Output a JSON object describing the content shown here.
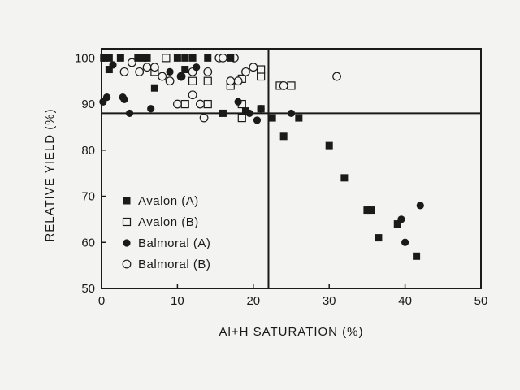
{
  "chart_data": {
    "type": "scatter",
    "title": "",
    "xlabel": "Al+H SATURATION (%)",
    "ylabel": "RELATIVE YIELD (%)",
    "xlim": [
      0,
      50
    ],
    "ylim": [
      50,
      102
    ],
    "xticks": [
      0,
      10,
      20,
      30,
      40,
      50
    ],
    "yticks": [
      50,
      60,
      70,
      80,
      90,
      100
    ],
    "grid": false,
    "legend_position": "lower-left",
    "reference_lines": {
      "x": 22,
      "y": 88
    },
    "series": [
      {
        "name": "Avalon (A)",
        "marker": "filled-square",
        "color": "#1a1a1a",
        "points": [
          [
            0.3,
            100
          ],
          [
            1.0,
            100
          ],
          [
            2.5,
            100
          ],
          [
            4.8,
            100
          ],
          [
            5.5,
            100
          ],
          [
            6.0,
            100
          ],
          [
            10.0,
            100
          ],
          [
            11.0,
            100
          ],
          [
            12.0,
            100
          ],
          [
            14.0,
            100
          ],
          [
            17.0,
            100
          ],
          [
            1.0,
            97.5
          ],
          [
            11.0,
            97.5
          ],
          [
            7.0,
            93.5
          ],
          [
            16.0,
            88
          ],
          [
            19.0,
            88.5
          ],
          [
            21.0,
            89
          ],
          [
            22.5,
            87
          ],
          [
            24.0,
            83
          ],
          [
            26.0,
            87
          ],
          [
            30.0,
            81
          ],
          [
            32.0,
            74
          ],
          [
            35.0,
            67
          ],
          [
            35.5,
            67
          ],
          [
            36.5,
            61
          ],
          [
            39.0,
            64
          ],
          [
            41.5,
            57
          ]
        ]
      },
      {
        "name": "Avalon (B)",
        "marker": "open-square",
        "color": "#1a1a1a",
        "points": [
          [
            8.5,
            100
          ],
          [
            7.0,
            97
          ],
          [
            12.0,
            95
          ],
          [
            14.0,
            95
          ],
          [
            17.0,
            94
          ],
          [
            18.5,
            95.5
          ],
          [
            21.0,
            96
          ],
          [
            21.0,
            97.5
          ],
          [
            23.5,
            94
          ],
          [
            25.0,
            94
          ],
          [
            11.0,
            90
          ],
          [
            14.0,
            90
          ],
          [
            18.5,
            90
          ],
          [
            18.5,
            87
          ]
        ]
      },
      {
        "name": "Balmoral (A)",
        "marker": "filled-circle",
        "color": "#1a1a1a",
        "points": [
          [
            0.3,
            100
          ],
          [
            1.5,
            98.5
          ],
          [
            9.0,
            97
          ],
          [
            10.5,
            96
          ],
          [
            12.5,
            98
          ],
          [
            0.2,
            90.5
          ],
          [
            0.7,
            91.5
          ],
          [
            2.8,
            91.5
          ],
          [
            3.0,
            91
          ],
          [
            3.7,
            88
          ],
          [
            6.5,
            89
          ],
          [
            18.0,
            90.5
          ],
          [
            19.5,
            88
          ],
          [
            20.5,
            86.5
          ],
          [
            21.0,
            89
          ],
          [
            25.0,
            88
          ],
          [
            39.5,
            65
          ],
          [
            40.0,
            60
          ],
          [
            42.0,
            68
          ]
        ]
      },
      {
        "name": "Balmoral (B)",
        "marker": "open-circle",
        "color": "#1a1a1a",
        "points": [
          [
            3.0,
            97
          ],
          [
            4.0,
            99
          ],
          [
            5.0,
            97
          ],
          [
            6.0,
            98
          ],
          [
            7.0,
            98
          ],
          [
            8.0,
            96
          ],
          [
            9.0,
            95
          ],
          [
            10.5,
            96
          ],
          [
            12.0,
            97
          ],
          [
            14.0,
            97
          ],
          [
            15.5,
            100
          ],
          [
            16.0,
            100
          ],
          [
            17.5,
            100
          ],
          [
            18.0,
            95
          ],
          [
            19.0,
            97
          ],
          [
            20.0,
            98
          ],
          [
            10.0,
            90
          ],
          [
            12.0,
            92
          ],
          [
            13.0,
            90
          ],
          [
            13.5,
            87
          ],
          [
            17.0,
            95
          ],
          [
            24.0,
            94
          ],
          [
            31.0,
            96
          ]
        ]
      }
    ]
  }
}
